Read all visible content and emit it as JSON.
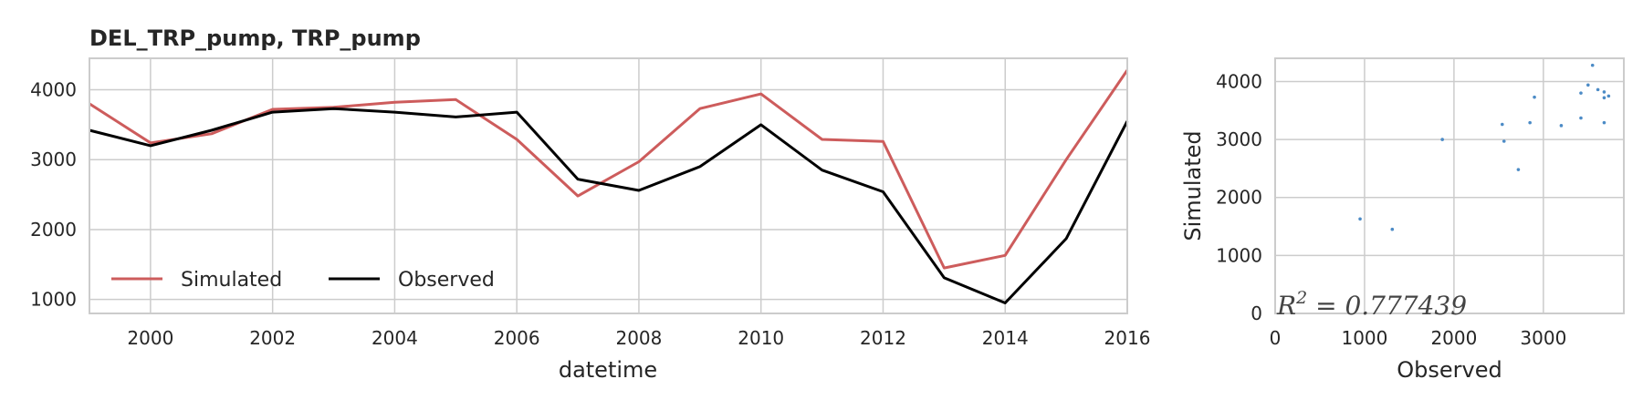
{
  "chart_data": [
    {
      "type": "line",
      "title": "DEL_TRP_pump, TRP_pump",
      "xlabel": "datetime",
      "ylabel": "",
      "xlim": [
        1999,
        2016
      ],
      "ylim": [
        800,
        4450
      ],
      "x_ticks": [
        "2000",
        "2002",
        "2004",
        "2006",
        "2008",
        "2010",
        "2012",
        "2014",
        "2016"
      ],
      "y_ticks": [
        "1000",
        "2000",
        "3000",
        "4000"
      ],
      "grid": true,
      "legend_position": "lower-left",
      "x": [
        1999,
        2000,
        2001,
        2002,
        2003,
        2004,
        2005,
        2006,
        2007,
        2008,
        2009,
        2010,
        2011,
        2012,
        2013,
        2014,
        2015,
        2016
      ],
      "series": [
        {
          "name": "Simulated",
          "color": "#cd5c5c",
          "values": [
            3800,
            3240,
            3370,
            3720,
            3750,
            3820,
            3860,
            3290,
            2480,
            2970,
            3730,
            3940,
            3290,
            3260,
            1450,
            1630,
            3000,
            4280
          ]
        },
        {
          "name": "Observed",
          "color": "#000000",
          "values": [
            3420,
            3200,
            3420,
            3680,
            3730,
            3680,
            3610,
            3680,
            2720,
            2560,
            2900,
            3500,
            2850,
            2540,
            1310,
            950,
            1870,
            3550
          ]
        }
      ]
    },
    {
      "type": "scatter",
      "title": "",
      "xlabel": "Observed",
      "ylabel": "Simulated",
      "xlim": [
        0,
        3900
      ],
      "ylim": [
        0,
        4400
      ],
      "x_ticks": [
        "0",
        "1000",
        "2000",
        "3000"
      ],
      "y_ticks": [
        "0",
        "1000",
        "2000",
        "3000",
        "4000"
      ],
      "grid": true,
      "point_color": "#4c8bc6",
      "annotation": "R^2 = 0.777439",
      "points": [
        [
          950,
          1630
        ],
        [
          1310,
          1450
        ],
        [
          1870,
          3000
        ],
        [
          2540,
          3260
        ],
        [
          2560,
          2970
        ],
        [
          2720,
          2480
        ],
        [
          2850,
          3290
        ],
        [
          2900,
          3730
        ],
        [
          3200,
          3240
        ],
        [
          3420,
          3800
        ],
        [
          3420,
          3370
        ],
        [
          3500,
          3940
        ],
        [
          3550,
          4280
        ],
        [
          3610,
          3860
        ],
        [
          3680,
          3820
        ],
        [
          3680,
          3290
        ],
        [
          3680,
          3720
        ],
        [
          3730,
          3750
        ]
      ]
    }
  ]
}
